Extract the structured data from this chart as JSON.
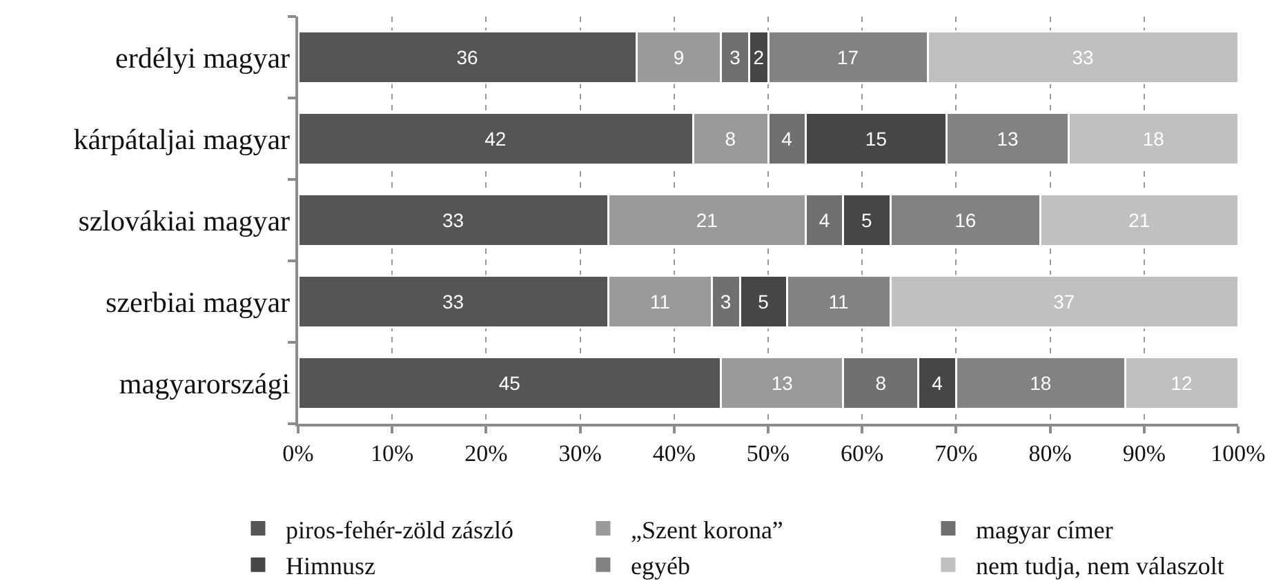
{
  "chart_data": {
    "type": "bar",
    "orientation": "horizontal",
    "stacked": true,
    "categories": [
      "erdélyi magyar",
      "kárpátaljai magyar",
      "szlovákiai magyar",
      "szerbiai magyar",
      "magyarországi"
    ],
    "series": [
      {
        "name": "piros-fehér-zöld zászló",
        "color": "#555555",
        "values": [
          36,
          42,
          33,
          33,
          45
        ]
      },
      {
        "name": "„Szent korona”",
        "color": "#9a9a9a",
        "values": [
          9,
          8,
          21,
          11,
          13
        ]
      },
      {
        "name": "magyar címer",
        "color": "#707070",
        "values": [
          3,
          4,
          4,
          3,
          8
        ]
      },
      {
        "name": "Himnusz",
        "color": "#464646",
        "values": [
          2,
          15,
          5,
          5,
          4
        ]
      },
      {
        "name": "egyéb",
        "color": "#828282",
        "values": [
          17,
          13,
          16,
          11,
          18
        ]
      },
      {
        "name": "nem tudja, nem válaszolt",
        "color": "#c0c0c0",
        "values": [
          33,
          18,
          21,
          37,
          12
        ]
      }
    ],
    "xlim": [
      0,
      100
    ],
    "xticks": [
      {
        "value": 0,
        "label": "0%"
      },
      {
        "value": 10,
        "label": "10%"
      },
      {
        "value": 20,
        "label": "20%"
      },
      {
        "value": 30,
        "label": "30%"
      },
      {
        "value": 40,
        "label": "40%"
      },
      {
        "value": 50,
        "label": "50%"
      },
      {
        "value": 60,
        "label": "60%"
      },
      {
        "value": 70,
        "label": "70%"
      },
      {
        "value": 80,
        "label": "80%"
      },
      {
        "value": 90,
        "label": "90%"
      },
      {
        "value": 100,
        "label": "100%"
      }
    ],
    "grid": "x",
    "legend": "bottom",
    "data_labels": true
  }
}
